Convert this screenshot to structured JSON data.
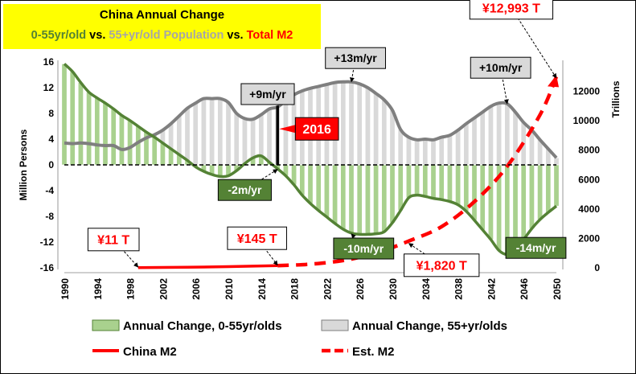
{
  "title": {
    "line1": "China Annual Change",
    "line2_parts": [
      {
        "text": "0-55yr/old",
        "color": "green"
      },
      {
        "text": " vs. ",
        "color": "black"
      },
      {
        "text": "55+yr/old Population",
        "color": "gray"
      },
      {
        "text": " vs. ",
        "color": "black"
      },
      {
        "text": "Total M2",
        "color": "red"
      }
    ]
  },
  "colors": {
    "young_bar": "#a9d18e",
    "young_bar_edge": "#ffffff",
    "young_line": "#548235",
    "old_bar": "#d9d9d9",
    "old_line": "#7f7f7f",
    "m2": "#ff0000",
    "callout_gray": "#d9d9d9",
    "callout_green": "#548235",
    "callout_red": "#ff0000"
  },
  "chart_data": {
    "type": "bar",
    "x": [
      1990,
      1991,
      1992,
      1993,
      1994,
      1995,
      1996,
      1997,
      1998,
      1999,
      2000,
      2001,
      2002,
      2003,
      2004,
      2005,
      2006,
      2007,
      2008,
      2009,
      2010,
      2011,
      2012,
      2013,
      2014,
      2015,
      2016,
      2017,
      2018,
      2019,
      2020,
      2021,
      2022,
      2023,
      2024,
      2025,
      2026,
      2027,
      2028,
      2029,
      2030,
      2031,
      2032,
      2033,
      2034,
      2035,
      2036,
      2037,
      2038,
      2039,
      2040,
      2041,
      2042,
      2043,
      2044,
      2045,
      2046,
      2047,
      2048,
      2049,
      2050
    ],
    "x_tick_labels": [
      "1990",
      "1994",
      "1998",
      "2002",
      "2006",
      "2010",
      "2014",
      "2018",
      "2022",
      "2026",
      "2030",
      "2034",
      "2038",
      "2042",
      "2046",
      "2050"
    ],
    "y_left": {
      "label": "Million Persons",
      "range": [
        -16,
        16
      ],
      "ticks": [
        "-16",
        "-12",
        "-8",
        "-4",
        "0",
        "4",
        "8",
        "12",
        "16"
      ]
    },
    "y_right": {
      "label": "Trillions",
      "range": [
        0,
        14000
      ],
      "ticks": [
        "0",
        "2000",
        "4000",
        "6000",
        "8000",
        "10000",
        "12000"
      ]
    },
    "series": [
      {
        "name": "Annual Change, 0-55yr/olds",
        "kind": "bar",
        "axis": "left",
        "values": [
          15.7,
          14.5,
          12.8,
          11.3,
          10.4,
          9.6,
          8.7,
          7.7,
          6.9,
          6.0,
          5.1,
          4.3,
          3.4,
          2.5,
          1.6,
          0.7,
          -0.3,
          -1.0,
          -1.5,
          -1.8,
          -1.7,
          -0.9,
          0.2,
          1.1,
          1.4,
          0.4,
          -0.6,
          -1.7,
          -3.1,
          -4.7,
          -6.0,
          -7.1,
          -8.1,
          -9.1,
          -10.0,
          -10.6,
          -10.8,
          -10.8,
          -10.7,
          -10.4,
          -9.0,
          -7.1,
          -5.1,
          -4.7,
          -4.9,
          -5.2,
          -5.4,
          -5.7,
          -6.2,
          -7.2,
          -8.6,
          -10.1,
          -11.6,
          -13.3,
          -13.9,
          -13.1,
          -11.6,
          -9.9,
          -8.5,
          -7.4,
          -6.4
        ]
      },
      {
        "name": "Annual Change, 0-55yr/olds",
        "kind": "line",
        "axis": "left",
        "values": [
          15.7,
          14.5,
          12.8,
          11.3,
          10.4,
          9.6,
          8.7,
          7.7,
          6.9,
          6.0,
          5.1,
          4.3,
          3.4,
          2.5,
          1.6,
          0.7,
          -0.3,
          -1.0,
          -1.5,
          -1.8,
          -1.7,
          -0.9,
          0.2,
          1.1,
          1.4,
          0.4,
          -0.6,
          -1.7,
          -3.1,
          -4.7,
          -6.0,
          -7.1,
          -8.1,
          -9.1,
          -10.0,
          -10.6,
          -10.8,
          -10.8,
          -10.7,
          -10.4,
          -9.0,
          -7.1,
          -5.1,
          -4.7,
          -4.9,
          -5.2,
          -5.4,
          -5.7,
          -6.2,
          -7.2,
          -8.6,
          -10.1,
          -11.6,
          -13.3,
          -13.9,
          -13.1,
          -11.6,
          -9.9,
          -8.5,
          -7.4,
          -6.4
        ]
      },
      {
        "name": "Annual Change, 55+yr/olds",
        "kind": "bar",
        "axis": "left",
        "values": [
          3.4,
          3.3,
          3.4,
          3.3,
          3.1,
          3.0,
          3.0,
          2.4,
          2.7,
          3.5,
          4.2,
          4.7,
          5.4,
          6.4,
          7.6,
          8.8,
          9.6,
          10.3,
          10.3,
          10.3,
          9.7,
          8.0,
          7.2,
          7.1,
          7.8,
          8.7,
          9.0,
          10.0,
          10.9,
          11.5,
          11.9,
          12.2,
          12.5,
          12.8,
          12.9,
          12.9,
          12.6,
          12.0,
          11.1,
          10.1,
          8.5,
          5.5,
          4.3,
          3.9,
          4.0,
          3.9,
          4.3,
          4.6,
          5.4,
          6.4,
          7.3,
          8.2,
          9.1,
          9.6,
          9.5,
          8.2,
          6.6,
          5.4,
          3.9,
          2.5,
          1.1
        ]
      },
      {
        "name": "Annual Change, 55+yr/olds",
        "kind": "line",
        "axis": "left",
        "values": [
          3.4,
          3.3,
          3.4,
          3.3,
          3.1,
          3.0,
          3.0,
          2.4,
          2.7,
          3.5,
          4.2,
          4.7,
          5.4,
          6.4,
          7.6,
          8.8,
          9.6,
          10.3,
          10.3,
          10.3,
          9.7,
          8.0,
          7.2,
          7.1,
          7.8,
          8.7,
          9.0,
          10.0,
          10.9,
          11.5,
          11.9,
          12.2,
          12.5,
          12.8,
          12.9,
          12.9,
          12.6,
          12.0,
          11.1,
          10.1,
          8.5,
          5.5,
          4.3,
          3.9,
          4.0,
          3.9,
          4.3,
          4.6,
          5.4,
          6.4,
          7.3,
          8.2,
          9.1,
          9.6,
          9.5,
          8.2,
          6.6,
          5.4,
          3.9,
          2.5,
          1.1
        ]
      },
      {
        "name": "China M2",
        "kind": "line",
        "axis": "right",
        "x": [
          1999,
          2005,
          2010,
          2016
        ],
        "values": [
          11,
          40,
          80,
          145
        ]
      },
      {
        "name": "Est. M2",
        "kind": "dashed-line",
        "axis": "right",
        "x": [
          2016,
          2020,
          2024,
          2028,
          2032,
          2036,
          2040,
          2044,
          2048,
          2050
        ],
        "values": [
          145,
          250,
          500,
          1000,
          1820,
          2800,
          4500,
          6900,
          10400,
          12993
        ]
      }
    ],
    "annotations": [
      {
        "text": "+9m/yr",
        "style": "gray",
        "box_x": 2014.8,
        "box_y": 11.0,
        "pt_x": 2016,
        "pt_y": 9.8
      },
      {
        "text": "+13m/yr",
        "style": "gray",
        "box_x": 2025.5,
        "box_y": 16.6,
        "pt_x": 2025,
        "pt_y": 12.9
      },
      {
        "text": "+10m/yr",
        "style": "gray",
        "box_x": 2043.2,
        "box_y": 15.1,
        "pt_x": 2044,
        "pt_y": 9.5
      },
      {
        "text": "-2m/yr",
        "style": "green",
        "box_x": 2012.0,
        "box_y": -3.9,
        "pt_x": 2016,
        "pt_y": -0.7
      },
      {
        "text": "-10m/yr",
        "style": "green",
        "box_x": 2026.5,
        "box_y": -13.0,
        "pt_x": 2025,
        "pt_y": -10.7
      },
      {
        "text": "-14m/yr",
        "style": "green",
        "box_x": 2047.5,
        "box_y": -12.9,
        "pt_x": 2044,
        "pt_y": -13.8
      },
      {
        "text": "2016",
        "style": "red",
        "box_x": 2020.8,
        "box_y": 5.6,
        "pt_x": 2016,
        "pt_y": 5.6
      },
      {
        "text": "¥11 T",
        "style": "white",
        "box_x": 1996.0,
        "box_y": -11.6,
        "pt_x": 1999,
        "pt_y": -15.9
      },
      {
        "text": "¥145 T",
        "style": "white",
        "box_x": 2013.5,
        "box_y": -11.4,
        "pt_x": 2016,
        "pt_y": -15.6
      },
      {
        "text": "¥1,820 T",
        "style": "white",
        "box_x": 2036.0,
        "box_y": -15.6,
        "pt_x": 2032,
        "pt_y": -12.2
      },
      {
        "text": "¥12,993 T",
        "style": "white",
        "box_x": 2044.5,
        "box_y": 24.4,
        "pt_x": 2050,
        "pt_y": 13.5
      }
    ],
    "marker_2016": {
      "x": 2016,
      "y_from": 0,
      "y_to": 9.2
    },
    "legend": [
      {
        "label": "Annual Change, 0-55yr/olds",
        "swatch": "young-bar"
      },
      {
        "label": "Annual Change, 55+yr/olds",
        "swatch": "old-bar"
      },
      {
        "label": "China M2",
        "swatch": "m2-solid"
      },
      {
        "label": "Est. M2",
        "swatch": "m2-dashed"
      }
    ],
    "legend_position": "bottom",
    "grid": false
  }
}
